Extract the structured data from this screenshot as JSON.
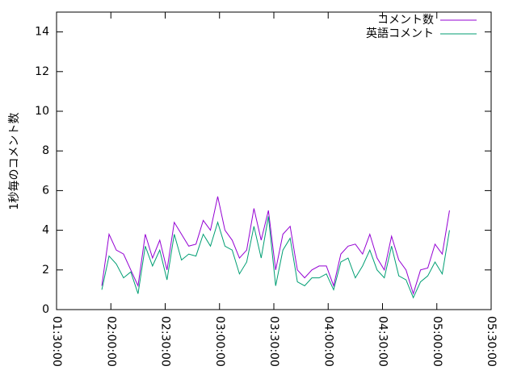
{
  "chart_data": {
    "type": "line",
    "y_label": "1秒毎のコメント数",
    "x": [
      "01:55:00",
      "01:59:00",
      "02:03:00",
      "02:07:00",
      "02:11:00",
      "02:15:00",
      "02:19:00",
      "02:23:00",
      "02:27:00",
      "02:31:00",
      "02:35:00",
      "02:39:00",
      "02:43:00",
      "02:47:00",
      "02:51:00",
      "02:55:00",
      "02:59:00",
      "03:03:00",
      "03:07:00",
      "03:11:00",
      "03:15:00",
      "03:19:00",
      "03:23:00",
      "03:27:00",
      "03:31:00",
      "03:35:00",
      "03:39:00",
      "03:43:00",
      "03:47:00",
      "03:51:00",
      "03:55:00",
      "03:59:00",
      "04:03:00",
      "04:07:00",
      "04:11:00",
      "04:15:00",
      "04:19:00",
      "04:23:00",
      "04:27:00",
      "04:31:00",
      "04:35:00",
      "04:39:00",
      "04:43:00",
      "04:47:00",
      "04:51:00",
      "04:55:00",
      "04:59:00",
      "05:03:00",
      "05:07:00"
    ],
    "series": [
      {
        "name": "コメント数",
        "color": "#9400d3",
        "values": [
          1.2,
          3.8,
          3.0,
          2.8,
          2.0,
          1.2,
          3.8,
          2.6,
          3.5,
          2.0,
          4.4,
          3.8,
          3.2,
          3.3,
          4.5,
          4.0,
          5.7,
          4.0,
          3.5,
          2.6,
          3.0,
          5.1,
          3.5,
          5.0,
          2.0,
          3.8,
          4.2,
          2.0,
          1.6,
          2.0,
          2.2,
          2.2,
          1.2,
          2.8,
          3.2,
          3.3,
          2.8,
          3.8,
          2.6,
          2.0,
          3.7,
          2.5,
          2.0,
          0.8,
          2.0,
          2.1,
          3.3,
          2.8,
          5.0
        ]
      },
      {
        "name": "英語コメント",
        "color": "#009e73",
        "values": [
          1.0,
          2.7,
          2.3,
          1.6,
          1.9,
          0.8,
          3.2,
          2.2,
          3.0,
          1.5,
          3.8,
          2.5,
          2.8,
          2.7,
          3.8,
          3.2,
          4.4,
          3.2,
          3.0,
          1.8,
          2.4,
          4.2,
          2.6,
          4.7,
          1.2,
          3.0,
          3.6,
          1.4,
          1.2,
          1.6,
          1.6,
          1.8,
          1.0,
          2.4,
          2.6,
          1.6,
          2.2,
          3.0,
          2.0,
          1.6,
          3.2,
          1.7,
          1.5,
          0.6,
          1.4,
          1.7,
          2.4,
          1.8,
          4.0
        ]
      }
    ],
    "xlim": [
      "01:30:00",
      "05:30:00"
    ],
    "xticks": [
      "01:30:00",
      "02:00:00",
      "02:30:00",
      "03:00:00",
      "03:30:00",
      "04:00:00",
      "04:30:00",
      "05:00:00",
      "05:30:00"
    ],
    "ylim": [
      0,
      15
    ],
    "yticks": [
      0,
      2,
      4,
      6,
      8,
      10,
      12,
      14
    ],
    "legend": "top-right"
  }
}
